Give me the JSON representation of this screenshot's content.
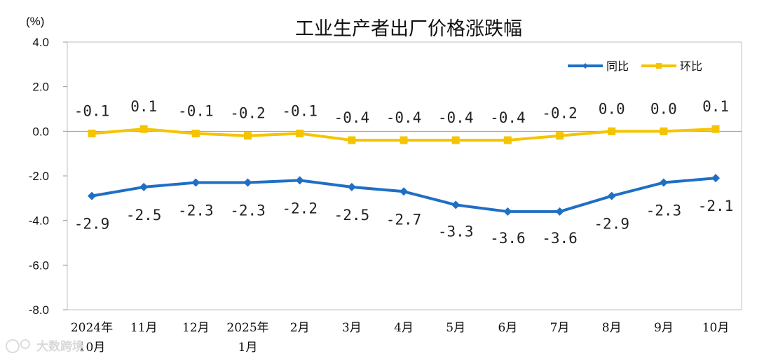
{
  "chart_data": {
    "type": "line",
    "title": "工业生产者出厂价格涨跌幅",
    "unit_label": "(%)",
    "categories": [
      [
        "2024年",
        "10月"
      ],
      [
        "11月"
      ],
      [
        "12月"
      ],
      [
        "2025年",
        "1月"
      ],
      [
        "2月"
      ],
      [
        "3月"
      ],
      [
        "4月"
      ],
      [
        "5月"
      ],
      [
        "6月"
      ],
      [
        "7月"
      ],
      [
        "8月"
      ],
      [
        "9月"
      ],
      [
        "10月"
      ]
    ],
    "ylim": [
      -8.0,
      4.0
    ],
    "yticks": [
      4.0,
      2.0,
      0.0,
      -2.0,
      -4.0,
      -6.0,
      -8.0
    ],
    "ytick_labels": [
      "4.0",
      "2.0",
      "0.0",
      "-2.0",
      "-4.0",
      "-6.0",
      "-8.0"
    ],
    "grid": false,
    "legend_position": "top-right",
    "series": [
      {
        "name": "同比",
        "color": "#1F6FC5",
        "marker": "diamond",
        "values": [
          -2.9,
          -2.5,
          -2.3,
          -2.3,
          -2.2,
          -2.5,
          -2.7,
          -3.3,
          -3.6,
          -3.6,
          -2.9,
          -2.3,
          -2.1
        ],
        "labels": [
          "-2.9",
          "-2.5",
          "-2.3",
          "-2.3",
          "-2.2",
          "-2.5",
          "-2.7",
          "-3.3",
          "-3.6",
          "-3.6",
          "-2.9",
          "-2.3",
          "-2.1"
        ]
      },
      {
        "name": "环比",
        "color": "#F5C400",
        "marker": "square",
        "values": [
          -0.1,
          0.1,
          -0.1,
          -0.2,
          -0.1,
          -0.4,
          -0.4,
          -0.4,
          -0.4,
          -0.2,
          0.0,
          0.0,
          0.1
        ],
        "labels": [
          "-0.1",
          "0.1",
          "-0.1",
          "-0.2",
          "-0.1",
          "-0.4",
          "-0.4",
          "-0.4",
          "-0.4",
          "-0.2",
          "0.0",
          "0.0",
          "0.1"
        ]
      }
    ]
  },
  "watermark": {
    "text": "大数跨境"
  }
}
